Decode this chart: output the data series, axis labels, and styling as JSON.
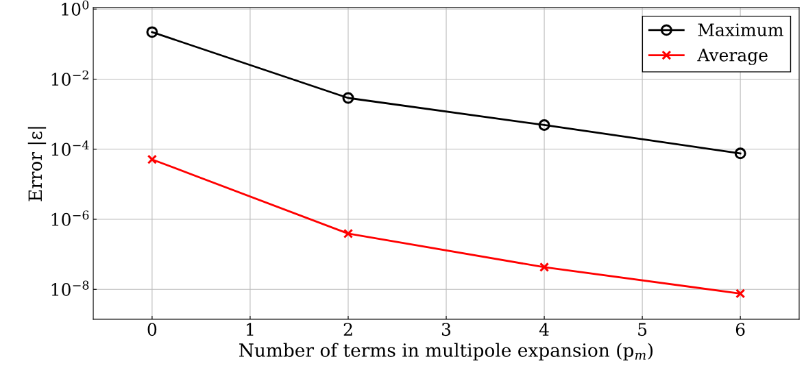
{
  "chart_data": {
    "type": "line",
    "xlabel": "Number of terms in multipole expansion (p$_{m}$)",
    "ylabel": "Error |ε|",
    "x": [
      0,
      2,
      4,
      6
    ],
    "series": [
      {
        "name": "Maximum",
        "color": "#000000",
        "marker": "circle",
        "values": [
          0.22,
          0.0029,
          0.00049,
          7.6e-05
        ]
      },
      {
        "name": "Average",
        "color": "#ff0000",
        "marker": "cross",
        "values": [
          5.1e-05,
          3.9e-07,
          4.3e-08,
          7.6e-09
        ]
      }
    ],
    "log": "y",
    "xlim": [
      -0.6,
      6.6
    ],
    "xticks": [
      0,
      1,
      2,
      3,
      4,
      5,
      6
    ],
    "ylim": [
      1.4e-09,
      1.1
    ],
    "yticks": [
      {
        "value": 1,
        "label": "10$^{0}$"
      },
      {
        "value": 0.01,
        "label": "10$^{−2}$"
      },
      {
        "value": 0.0001,
        "label": "10$^{−4}$"
      },
      {
        "value": 1e-06,
        "label": "10$^{−6}$"
      },
      {
        "value": 1e-08,
        "label": "10$^{−8}$"
      }
    ],
    "grid": true,
    "legend": "top right",
    "line_style": "solid"
  }
}
